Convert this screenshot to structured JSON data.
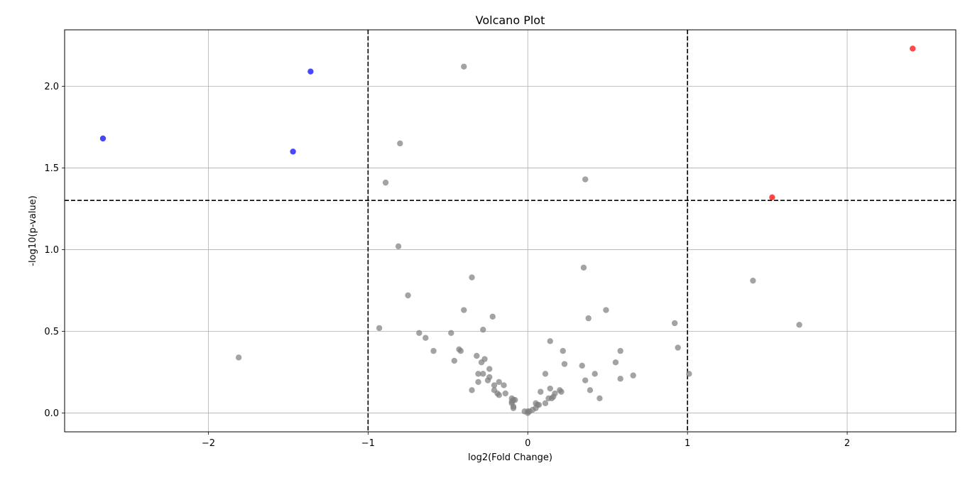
{
  "chart_data": {
    "type": "scatter",
    "title": "Volcano Plot",
    "xlabel": "log2(Fold Change)",
    "ylabel": "-log10(p-value)",
    "xlim": [
      -2.9,
      2.68
    ],
    "ylim": [
      -0.115,
      2.345
    ],
    "xticks": [
      -2,
      -1,
      0,
      1,
      2
    ],
    "xtick_labels": [
      "−2",
      "−1",
      "0",
      "1",
      "2"
    ],
    "yticks": [
      0.0,
      0.5,
      1.0,
      1.5,
      2.0
    ],
    "ytick_labels": [
      "0.0",
      "0.5",
      "1.0",
      "1.5",
      "2.0"
    ],
    "grid": true,
    "thresholds": {
      "x": [
        -1,
        1
      ],
      "y": 1.301
    },
    "colors": {
      "up": "#ff0000",
      "down": "#0000ff",
      "ns": "#808080",
      "threshold": "#000000",
      "grid": "#b0b0b0"
    },
    "series": [
      {
        "color": "#ff0000",
        "points": [
          [
            2.41,
            2.23
          ],
          [
            1.53,
            1.32
          ]
        ]
      },
      {
        "color": "#0000ff",
        "points": [
          [
            -2.66,
            1.68
          ],
          [
            -1.36,
            2.09
          ],
          [
            -1.47,
            1.6
          ]
        ]
      },
      {
        "color": "#808080",
        "points": [
          [
            -0.4,
            2.12
          ],
          [
            -0.8,
            1.65
          ],
          [
            -0.89,
            1.41
          ],
          [
            0.36,
            1.43
          ],
          [
            -0.81,
            1.02
          ],
          [
            -0.35,
            0.83
          ],
          [
            0.35,
            0.89
          ],
          [
            -0.75,
            0.72
          ],
          [
            -0.4,
            0.63
          ],
          [
            0.49,
            0.63
          ],
          [
            -0.22,
            0.59
          ],
          [
            0.38,
            0.58
          ],
          [
            -0.93,
            0.52
          ],
          [
            -0.28,
            0.51
          ],
          [
            -0.68,
            0.49
          ],
          [
            -0.48,
            0.49
          ],
          [
            -0.64,
            0.46
          ],
          [
            -1.81,
            0.34
          ],
          [
            1.41,
            0.81
          ],
          [
            1.7,
            0.54
          ],
          [
            0.92,
            0.55
          ],
          [
            0.94,
            0.4
          ],
          [
            1.01,
            0.24
          ],
          [
            0.14,
            0.44
          ],
          [
            -0.59,
            0.38
          ],
          [
            -0.43,
            0.39
          ],
          [
            -0.42,
            0.38
          ],
          [
            0.22,
            0.38
          ],
          [
            0.58,
            0.38
          ],
          [
            -0.32,
            0.35
          ],
          [
            -0.27,
            0.33
          ],
          [
            -0.46,
            0.32
          ],
          [
            -0.29,
            0.31
          ],
          [
            0.23,
            0.3
          ],
          [
            0.34,
            0.29
          ],
          [
            0.55,
            0.31
          ],
          [
            -0.24,
            0.27
          ],
          [
            0.11,
            0.24
          ],
          [
            -0.31,
            0.24
          ],
          [
            -0.28,
            0.24
          ],
          [
            0.42,
            0.24
          ],
          [
            0.66,
            0.23
          ],
          [
            -0.24,
            0.22
          ],
          [
            -0.25,
            0.2
          ],
          [
            0.58,
            0.21
          ],
          [
            0.36,
            0.2
          ],
          [
            -0.31,
            0.19
          ],
          [
            -0.18,
            0.19
          ],
          [
            -0.21,
            0.17
          ],
          [
            -0.15,
            0.17
          ],
          [
            -0.35,
            0.14
          ],
          [
            -0.21,
            0.14
          ],
          [
            0.14,
            0.15
          ],
          [
            0.39,
            0.14
          ],
          [
            0.2,
            0.14
          ],
          [
            0.21,
            0.13
          ],
          [
            -0.19,
            0.12
          ],
          [
            -0.18,
            0.11
          ],
          [
            -0.14,
            0.12
          ],
          [
            0.08,
            0.13
          ],
          [
            0.17,
            0.12
          ],
          [
            0.16,
            0.1
          ],
          [
            0.15,
            0.09
          ],
          [
            0.13,
            0.09
          ],
          [
            0.45,
            0.09
          ],
          [
            -0.1,
            0.09
          ],
          [
            -0.09,
            0.08
          ],
          [
            -0.08,
            0.08
          ],
          [
            -0.1,
            0.07
          ],
          [
            -0.1,
            0.06
          ],
          [
            0.05,
            0.06
          ],
          [
            0.06,
            0.05
          ],
          [
            0.07,
            0.05
          ],
          [
            0.11,
            0.06
          ],
          [
            -0.09,
            0.04
          ],
          [
            0.05,
            0.03
          ],
          [
            -0.09,
            0.03
          ],
          [
            0.03,
            0.02
          ],
          [
            -0.02,
            0.01
          ],
          [
            0.0,
            0.01
          ],
          [
            0.01,
            0.01
          ],
          [
            0.0,
            0.0
          ]
        ]
      }
    ]
  }
}
